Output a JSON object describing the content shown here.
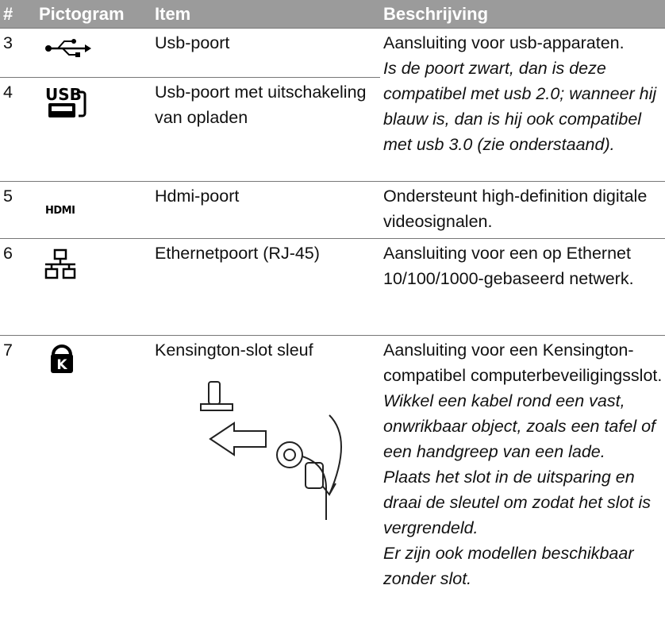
{
  "table": {
    "header": [
      "#",
      "Pictogram",
      "Item",
      "Beschrijving"
    ],
    "rows": [
      {
        "number": "3",
        "item": "Usb-poort",
        "description": [
          "Aansluiting voor usb-apparaten."
        ],
        "notes": [
          "Is de poort zwart, dan is deze compatibel met usb 2.0; wanneer hij blauw is, dan is hij ook compatibel met usb 3.0 (zie onderstaand)."
        ]
      },
      {
        "number": "4",
        "icon_text": "USB",
        "item": "Usb-poort met uitschakeling van opladen"
      },
      {
        "number": "5",
        "icon_text": "HDMI",
        "item": "Hdmi-poort",
        "description": [
          "Ondersteunt high-definition digitale videosignalen."
        ]
      },
      {
        "number": "6",
        "item": "Ethernetpoort (RJ-45)",
        "description": [
          "Aansluiting voor een op Ethernet 10/100/1000-gebaseerd netwerk."
        ]
      },
      {
        "number": "7",
        "icon_text": "K",
        "item": "Kensington-slot sleuf",
        "description": [
          "Aansluiting voor een Kensington-compatibel computerbeveiligingsslot."
        ],
        "notes": [
          "Wikkel een kabel rond een vast, onwrikbaar object, zoals een tafel of een handgreep van een lade.",
          "Plaats het slot in de uitsparing en draai de sleutel om zodat het slot is vergrendeld.",
          "Er zijn ook modellen beschikbaar zonder slot."
        ]
      }
    ]
  }
}
